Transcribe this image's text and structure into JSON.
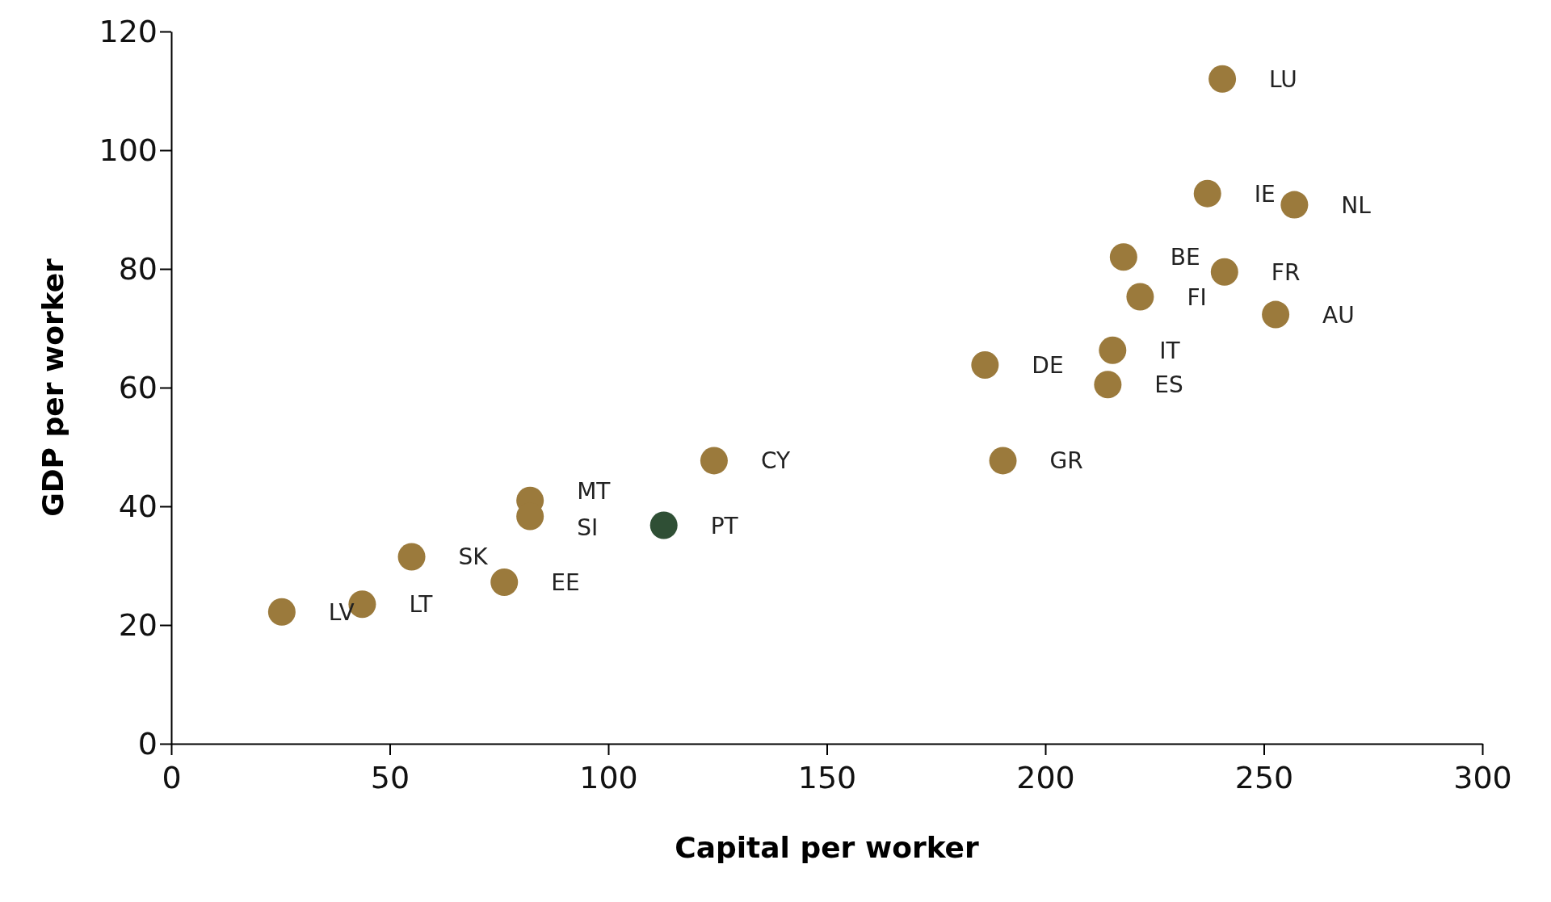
{
  "chart_data": {
    "type": "scatter",
    "xlabel": "Capital per worker",
    "ylabel": "GDP per worker",
    "xlim": [
      0,
      300
    ],
    "xticks": [
      0,
      50,
      100,
      150,
      200,
      250,
      300
    ],
    "ylim": [
      0,
      120
    ],
    "yticks": [
      0,
      20,
      40,
      60,
      80,
      100,
      120
    ],
    "grid": false,
    "marker": "circle",
    "x": [
      240.5,
      237.1,
      257,
      217.9,
      241,
      221.7,
      252.7,
      215.4,
      214.3,
      186.2,
      190.3,
      124.2,
      82.1,
      82.1,
      112.7,
      55,
      76.2,
      43.7,
      25.3
    ],
    "values": [
      112,
      92.7,
      90.8,
      82,
      79.5,
      75.3,
      72.3,
      66.3,
      60.5,
      63.8,
      47.7,
      47.7,
      41,
      38.3,
      36.8,
      31.5,
      27.2,
      23.5,
      22.2
    ],
    "colors": [
      "#9b7a3c",
      "#9b7a3c",
      "#9b7a3c",
      "#9b7a3c",
      "#9b7a3c",
      "#9b7a3c",
      "#9b7a3c",
      "#9b7a3c",
      "#9b7a3c",
      "#9b7a3c",
      "#9b7a3c",
      "#9b7a3c",
      "#9b7a3c",
      "#9b7a3c",
      "#2f4f35",
      "#9b7a3c",
      "#9b7a3c",
      "#9b7a3c",
      "#9b7a3c"
    ],
    "annotations": [
      {
        "text": "LU",
        "x": 240.5,
        "y": 112
      },
      {
        "text": "IE",
        "x": 237.1,
        "y": 92.7
      },
      {
        "text": "NL",
        "x": 257,
        "y": 90.8
      },
      {
        "text": "BE",
        "x": 217.9,
        "y": 82
      },
      {
        "text": "FR",
        "x": 241,
        "y": 79.5
      },
      {
        "text": "FI",
        "x": 221.7,
        "y": 75.3
      },
      {
        "text": "AU",
        "x": 252.7,
        "y": 72.3
      },
      {
        "text": "IT",
        "x": 215.4,
        "y": 66.3
      },
      {
        "text": "ES",
        "x": 214.3,
        "y": 60.5
      },
      {
        "text": "DE",
        "x": 186.2,
        "y": 63.8
      },
      {
        "text": "GR",
        "x": 190.3,
        "y": 47.7
      },
      {
        "text": "CY",
        "x": 124.2,
        "y": 47.7
      },
      {
        "text": "MT",
        "x": 82.1,
        "y": 41
      },
      {
        "text": "SI",
        "x": 82.1,
        "y": 38.3
      },
      {
        "text": "PT",
        "x": 112.7,
        "y": 36.8
      },
      {
        "text": "SK",
        "x": 55,
        "y": 31.5
      },
      {
        "text": "EE",
        "x": 76.2,
        "y": 27.2
      },
      {
        "text": "LT",
        "x": 43.7,
        "y": 23.5
      },
      {
        "text": "LV",
        "x": 25.3,
        "y": 22.2
      }
    ]
  }
}
